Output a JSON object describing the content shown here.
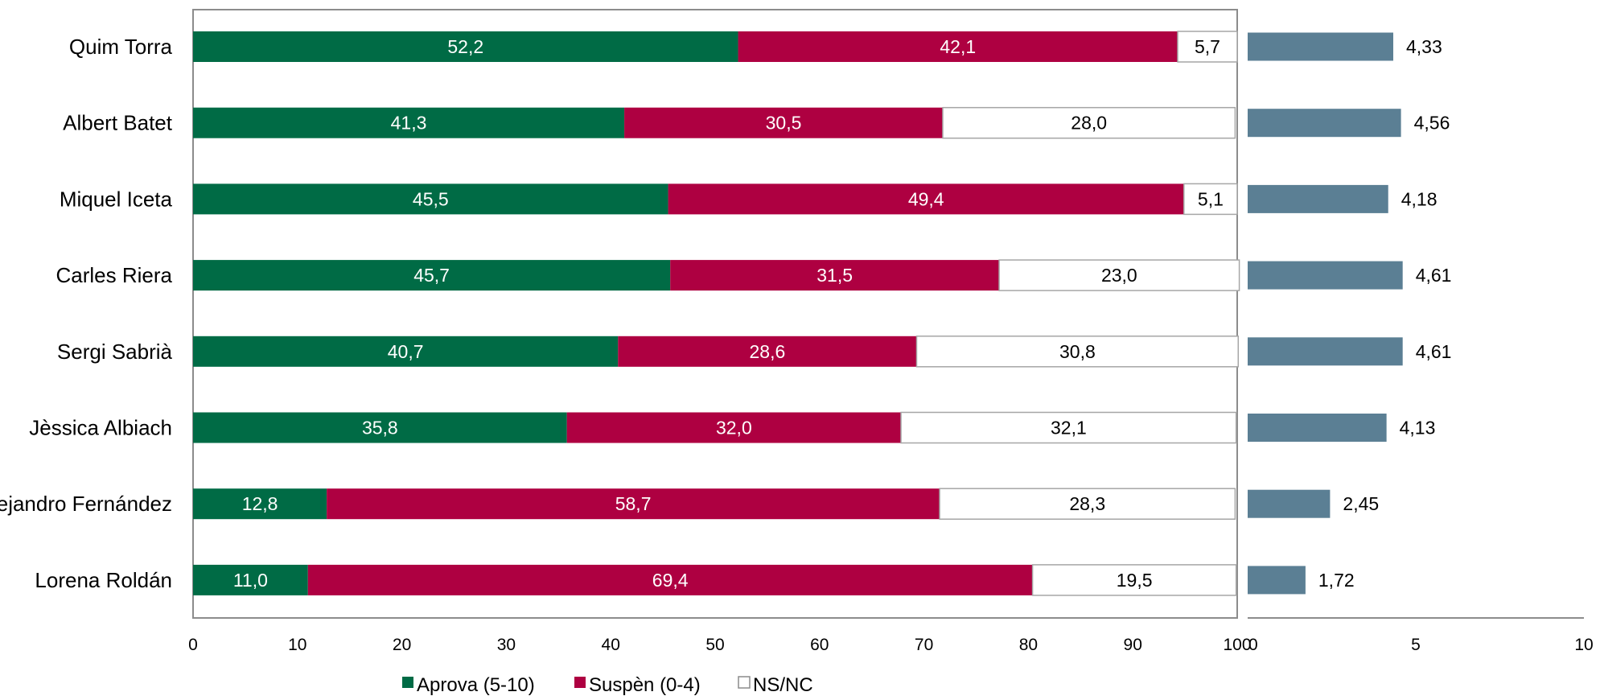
{
  "chart_data": [
    {
      "type": "bar",
      "orientation": "horizontal",
      "stacked": true,
      "categories": [
        "Quim Torra",
        "Albert Batet",
        "Miquel Iceta",
        "Carles Riera",
        "Sergi Sabrià",
        "Jèssica Albiach",
        "Alejandro Fernández",
        "Lorena Roldán"
      ],
      "series": [
        {
          "name": "Aprova (5-10)",
          "values": [
            52.2,
            41.3,
            45.5,
            45.7,
            40.7,
            35.8,
            12.8,
            11.0
          ],
          "labels": [
            "52,2",
            "41,3",
            "45,5",
            "45,7",
            "40,7",
            "35,8",
            "12,8",
            "11,0"
          ]
        },
        {
          "name": "Suspèn (0-4)",
          "values": [
            42.1,
            30.5,
            49.4,
            31.5,
            28.6,
            32.0,
            58.7,
            69.4
          ],
          "labels": [
            "42,1",
            "30,5",
            "49,4",
            "31,5",
            "28,6",
            "32,0",
            "58,7",
            "69,4"
          ]
        },
        {
          "name": "NS/NC",
          "values": [
            5.7,
            28.0,
            5.1,
            23.0,
            30.8,
            32.1,
            28.3,
            19.5
          ],
          "labels": [
            "5,7",
            "28,0",
            "5,1",
            "23,0",
            "30,8",
            "32,1",
            "28,3",
            "19,5"
          ]
        }
      ],
      "xlim": [
        0,
        100
      ],
      "xticks": [
        "0",
        "10",
        "20",
        "30",
        "40",
        "50",
        "60",
        "70",
        "80",
        "90",
        "100"
      ],
      "title": "",
      "xlabel": "",
      "ylabel": "",
      "grid": false,
      "legend_position": "bottom"
    },
    {
      "type": "bar",
      "orientation": "horizontal",
      "categories": [
        "Quim Torra",
        "Albert Batet",
        "Miquel Iceta",
        "Carles Riera",
        "Sergi Sabrià",
        "Jèssica Albiach",
        "Alejandro Fernández",
        "Lorena Roldán"
      ],
      "values": [
        4.33,
        4.56,
        4.18,
        4.61,
        4.61,
        4.13,
        2.45,
        1.72
      ],
      "labels": [
        "4,33",
        "4,56",
        "4,18",
        "4,61",
        "4,61",
        "4,13",
        "2,45",
        "1,72"
      ],
      "xlim": [
        0,
        10
      ],
      "xticks": [
        "0",
        "5",
        "10"
      ],
      "title": "",
      "xlabel": "",
      "ylabel": "",
      "grid": false
    }
  ],
  "colors": {
    "aprova": "#006B45",
    "suspen": "#AE0041",
    "nsnc": "#FFFFFF",
    "nota": "#5B7F94",
    "axis": "#8C8C8C",
    "bar_border": "#A6A6A6"
  }
}
